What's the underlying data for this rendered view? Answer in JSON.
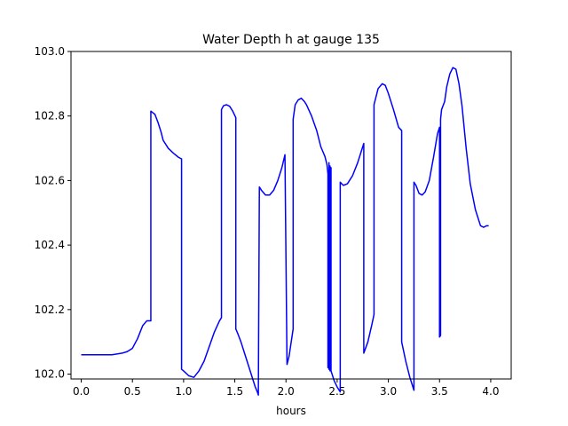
{
  "chart_data": {
    "type": "line",
    "title": "Water Depth h at gauge 135",
    "xlabel": "hours",
    "ylabel": "",
    "xlim": [
      -0.1,
      4.2
    ],
    "ylim": [
      101.985,
      103.0
    ],
    "xticks": [
      0.0,
      0.5,
      1.0,
      1.5,
      2.0,
      2.5,
      3.0,
      3.5,
      4.0
    ],
    "xtick_labels": [
      "0.0",
      "0.5",
      "1.0",
      "1.5",
      "2.0",
      "2.5",
      "3.0",
      "3.5",
      "4.0"
    ],
    "yticks": [
      102.0,
      102.2,
      102.4,
      102.6,
      102.8,
      103.0
    ],
    "ytick_labels": [
      "102.0",
      "102.2",
      "102.4",
      "102.6",
      "102.8",
      "103.0"
    ],
    "grid": false,
    "series": [
      {
        "color": "#0000ff",
        "x": [
          0.0,
          0.2,
          0.3,
          0.4,
          0.45,
          0.5,
          0.55,
          0.6,
          0.64,
          0.67,
          0.68,
          0.68,
          0.7,
          0.72,
          0.75,
          0.78,
          0.8,
          0.85,
          0.9,
          0.95,
          0.98,
          0.98,
          1.0,
          1.05,
          1.1,
          1.15,
          1.2,
          1.25,
          1.3,
          1.35,
          1.37,
          1.37,
          1.39,
          1.42,
          1.45,
          1.48,
          1.51,
          1.51,
          1.53,
          1.56,
          1.6,
          1.65,
          1.7,
          1.72,
          1.73,
          1.74,
          1.76,
          1.8,
          1.84,
          1.88,
          1.92,
          1.96,
          1.99,
          2.01,
          2.01,
          2.03,
          2.07,
          2.07,
          2.09,
          2.12,
          2.15,
          2.18,
          2.2,
          2.25,
          2.3,
          2.34,
          2.38,
          2.4,
          2.41,
          2.41,
          2.42,
          2.42,
          2.43,
          2.43,
          2.44,
          2.44,
          2.47,
          2.5,
          2.53,
          2.53,
          2.56,
          2.6,
          2.65,
          2.7,
          2.75,
          2.76,
          2.76,
          2.8,
          2.84,
          2.86,
          2.86,
          2.9,
          2.94,
          2.97,
          3.0,
          3.05,
          3.1,
          3.13,
          3.13,
          3.17,
          3.21,
          3.25,
          3.25,
          3.27,
          3.3,
          3.33,
          3.36,
          3.4,
          3.44,
          3.48,
          3.5,
          3.5,
          3.51,
          3.51,
          3.52,
          3.55,
          3.57,
          3.6,
          3.63,
          3.66,
          3.69,
          3.72,
          3.76,
          3.8,
          3.85,
          3.9,
          3.93,
          3.96,
          3.98
        ],
        "y": [
          102.06,
          102.06,
          102.06,
          102.065,
          102.07,
          102.08,
          102.11,
          102.15,
          102.165,
          102.165,
          102.165,
          102.815,
          102.81,
          102.805,
          102.78,
          102.75,
          102.725,
          102.7,
          102.685,
          102.672,
          102.667,
          102.015,
          102.01,
          101.995,
          101.99,
          102.01,
          102.04,
          102.085,
          102.13,
          102.165,
          102.175,
          102.82,
          102.832,
          102.835,
          102.83,
          102.815,
          102.795,
          102.14,
          102.125,
          102.1,
          102.06,
          102.01,
          101.96,
          101.945,
          101.935,
          102.58,
          102.57,
          102.555,
          102.555,
          102.57,
          102.6,
          102.64,
          102.68,
          102.03,
          102.03,
          102.055,
          102.14,
          102.79,
          102.835,
          102.85,
          102.855,
          102.845,
          102.835,
          102.8,
          102.755,
          102.705,
          102.675,
          102.65,
          102.62,
          102.02,
          102.655,
          102.015,
          102.645,
          102.01,
          102.64,
          102.01,
          101.98,
          101.96,
          101.945,
          102.595,
          102.585,
          102.59,
          102.615,
          102.655,
          102.705,
          102.715,
          102.065,
          102.1,
          102.155,
          102.185,
          102.835,
          102.885,
          102.9,
          102.895,
          102.87,
          102.82,
          102.765,
          102.755,
          102.1,
          102.04,
          101.99,
          101.95,
          102.595,
          102.585,
          102.56,
          102.555,
          102.565,
          102.6,
          102.67,
          102.745,
          102.765,
          102.115,
          102.12,
          102.79,
          102.82,
          102.845,
          102.89,
          102.93,
          102.95,
          102.945,
          102.9,
          102.83,
          102.7,
          102.59,
          102.51,
          102.46,
          102.455,
          102.46,
          102.46
        ]
      }
    ]
  }
}
